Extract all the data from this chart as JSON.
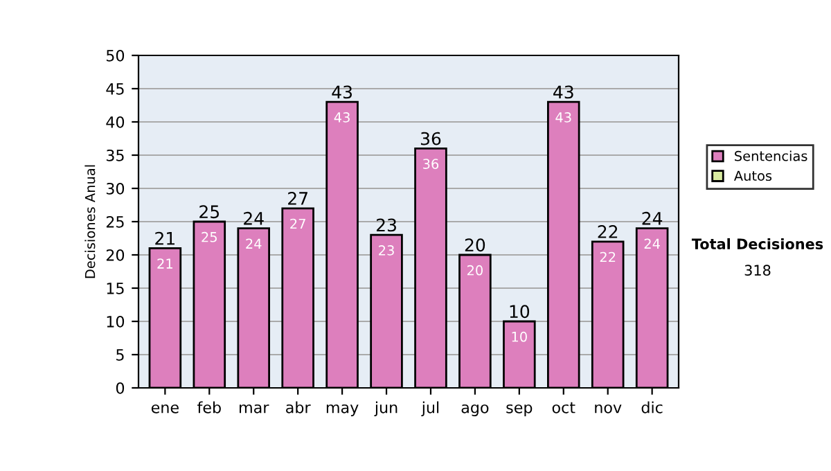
{
  "chart_data": {
    "type": "bar",
    "stacked": true,
    "ylabel": "Decisiones Anual",
    "categories": [
      "ene",
      "feb",
      "mar",
      "abr",
      "may",
      "jun",
      "jul",
      "ago",
      "sep",
      "oct",
      "nov",
      "dic"
    ],
    "series": [
      {
        "name": "Sentencias",
        "color": "#dd7fbd",
        "values": [
          21,
          25,
          24,
          27,
          43,
          23,
          36,
          20,
          10,
          43,
          22,
          24
        ]
      },
      {
        "name": "Autos",
        "color": "#d9eca0",
        "values": [
          null,
          null,
          null,
          null,
          null,
          null,
          null,
          null,
          null,
          null,
          null,
          null
        ]
      }
    ],
    "totals": [
      "21",
      "25",
      "24",
      "27",
      "43",
      "23",
      "36",
      "20",
      "10",
      "43",
      "22",
      "24"
    ],
    "data_labels": true,
    "ylim": [
      0,
      50
    ],
    "yticks": [
      0,
      5,
      10,
      15,
      20,
      25,
      30,
      35,
      40,
      45,
      50
    ],
    "grid": "y",
    "legend": "right",
    "annotations": [
      "Total Decisiones",
      "318"
    ]
  }
}
